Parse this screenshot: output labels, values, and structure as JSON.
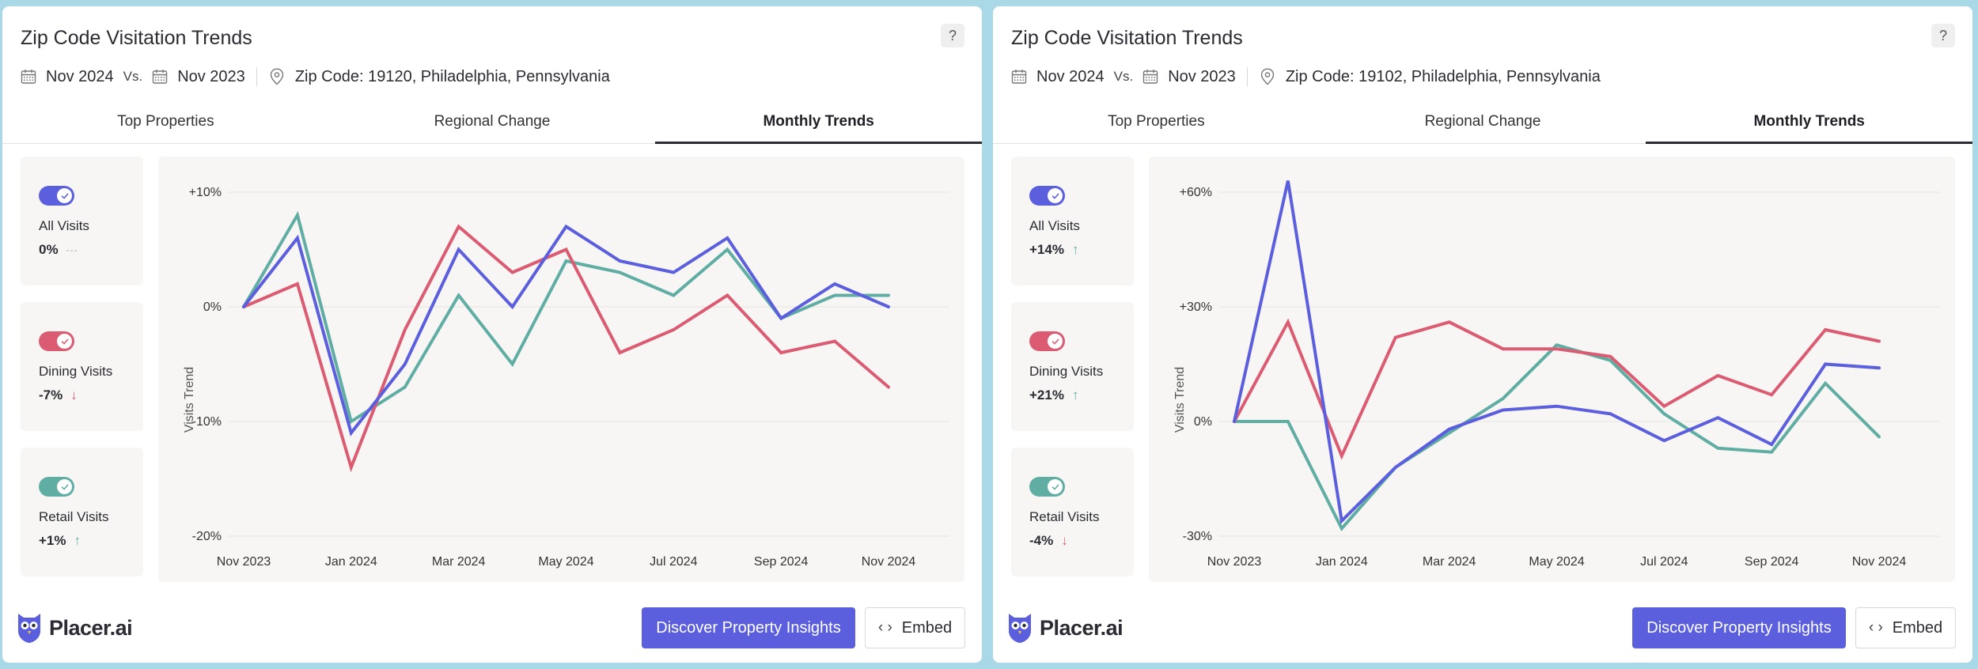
{
  "colors": {
    "all_visits": "#5b5fde",
    "dining_visits": "#db5c72",
    "retail_visits": "#5fada3",
    "up": "#5fada3",
    "down": "#db5c72",
    "neutral": "#b0b0b0"
  },
  "widgets": [
    {
      "title": "Zip Code Visitation Trends",
      "help_label": "?",
      "date_from": "Nov 2024",
      "vs_label": "Vs.",
      "date_to": "Nov 2023",
      "location": "Zip Code: 19120, Philadelphia, Pennsylvania",
      "tabs": [
        "Top Properties",
        "Regional Change",
        "Monthly Trends"
      ],
      "active_tab": 2,
      "toggles": [
        {
          "label": "All Visits",
          "value": "0%",
          "trend": "neutral",
          "indicator": "---",
          "color_key": "all_visits"
        },
        {
          "label": "Dining Visits",
          "value": "-7%",
          "trend": "down",
          "indicator": "↓",
          "color_key": "dining_visits"
        },
        {
          "label": "Retail Visits",
          "value": "+1%",
          "trend": "up",
          "indicator": "↑",
          "color_key": "retail_visits"
        }
      ],
      "logo_text": "Placer.ai",
      "cta_label": "Discover Property Insights",
      "embed_label": "Embed",
      "chart_data": {
        "type": "line",
        "ylabel": "Visits Trend",
        "ylim": [
          -20,
          10
        ],
        "yticks": [
          10,
          0,
          -10,
          -20
        ],
        "ytick_labels": [
          "+10%",
          "0%",
          "-10%",
          "-20%"
        ],
        "x": [
          "Nov 2023",
          "Dec 2023",
          "Jan 2024",
          "Feb 2024",
          "Mar 2024",
          "Apr 2024",
          "May 2024",
          "Jun 2024",
          "Jul 2024",
          "Aug 2024",
          "Sep 2024",
          "Oct 2024",
          "Nov 2024"
        ],
        "xtick_labels": [
          "Nov 2023",
          "Jan 2024",
          "Mar 2024",
          "May 2024",
          "Jul 2024",
          "Sep 2024",
          "Nov 2024"
        ],
        "series": [
          {
            "name": "Retail Visits",
            "color_key": "retail_visits",
            "values": [
              0,
              8,
              -10,
              -7,
              1,
              -5,
              4,
              3,
              1,
              5,
              -1,
              1,
              1
            ]
          },
          {
            "name": "Dining Visits",
            "color_key": "dining_visits",
            "values": [
              0,
              2,
              -14,
              -2,
              7,
              3,
              5,
              -4,
              -2,
              1,
              -4,
              -3,
              -7
            ]
          },
          {
            "name": "All Visits",
            "color_key": "all_visits",
            "values": [
              0,
              6,
              -11,
              -5,
              5,
              0,
              7,
              4,
              3,
              6,
              -1,
              2,
              0
            ]
          }
        ]
      }
    },
    {
      "title": "Zip Code Visitation Trends",
      "help_label": "?",
      "date_from": "Nov 2024",
      "vs_label": "Vs.",
      "date_to": "Nov 2023",
      "location": "Zip Code: 19102, Philadelphia, Pennsylvania",
      "tabs": [
        "Top Properties",
        "Regional Change",
        "Monthly Trends"
      ],
      "active_tab": 2,
      "toggles": [
        {
          "label": "All Visits",
          "value": "+14%",
          "trend": "up",
          "indicator": "↑",
          "color_key": "all_visits"
        },
        {
          "label": "Dining Visits",
          "value": "+21%",
          "trend": "up",
          "indicator": "↑",
          "color_key": "dining_visits"
        },
        {
          "label": "Retail Visits",
          "value": "-4%",
          "trend": "down",
          "indicator": "↓",
          "color_key": "retail_visits"
        }
      ],
      "logo_text": "Placer.ai",
      "cta_label": "Discover Property Insights",
      "embed_label": "Embed",
      "chart_data": {
        "type": "line",
        "ylabel": "Visits Trend",
        "ylim": [
          -30,
          70
        ],
        "yticks": [
          60,
          30,
          0,
          -30
        ],
        "ytick_labels": [
          "+60%",
          "+30%",
          "0%",
          "-30%"
        ],
        "x": [
          "Nov 2023",
          "Dec 2023",
          "Jan 2024",
          "Feb 2024",
          "Mar 2024",
          "Apr 2024",
          "May 2024",
          "Jun 2024",
          "Jul 2024",
          "Aug 2024",
          "Sep 2024",
          "Oct 2024",
          "Nov 2024"
        ],
        "xtick_labels": [
          "Nov 2023",
          "Jan 2024",
          "Mar 2024",
          "May 2024",
          "Jul 2024",
          "Sep 2024",
          "Nov 2024"
        ],
        "series": [
          {
            "name": "Retail Visits",
            "color_key": "retail_visits",
            "values": [
              0,
              0,
              -28,
              -12,
              -3,
              6,
              20,
              16,
              2,
              -7,
              -8,
              10,
              -4
            ]
          },
          {
            "name": "Dining Visits",
            "color_key": "dining_visits",
            "values": [
              0,
              26,
              -9,
              22,
              26,
              19,
              19,
              17,
              4,
              12,
              7,
              24,
              21
            ]
          },
          {
            "name": "All Visits",
            "color_key": "all_visits",
            "values": [
              0,
              63,
              -26,
              -12,
              -2,
              3,
              4,
              2,
              -5,
              1,
              -6,
              15,
              14
            ]
          }
        ]
      }
    }
  ]
}
